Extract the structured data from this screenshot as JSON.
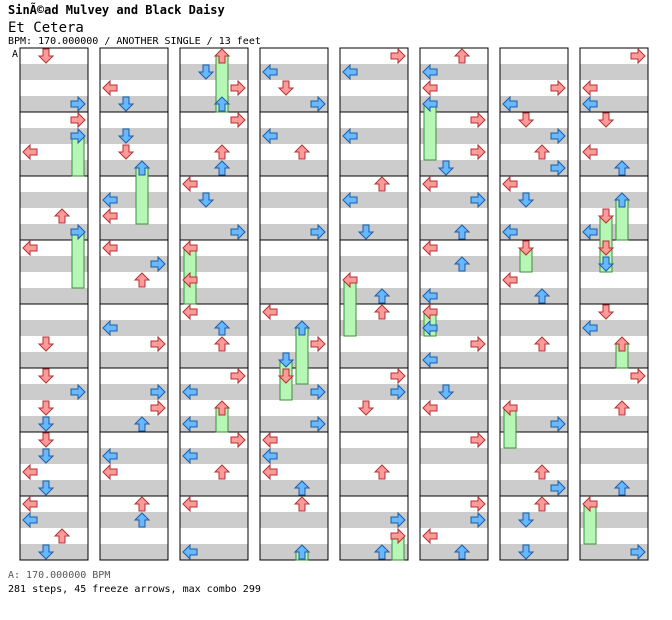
{
  "header": {
    "artist": "SinÃ©ad Mulvey and Black Daisy",
    "title": "Et Cetera",
    "info": "BPM: 170.000000 / ANOTHER SINGLE / 13 feet"
  },
  "chart": {
    "section_label": "A",
    "columns": 8,
    "measures_per_column": 8,
    "bpm_readout": "A: 170.000000 BPM",
    "stats": "281 steps, 45 freeze arrows, max combo 299"
  },
  "colors": {
    "red_arrow": "#ff9a9a",
    "blue_arrow": "#66b8ff",
    "freeze_fill": "#b6f7b6",
    "freeze_border": "#3c8c3c",
    "band_grey": "#cccccc",
    "band_white": "#ffffff"
  }
}
